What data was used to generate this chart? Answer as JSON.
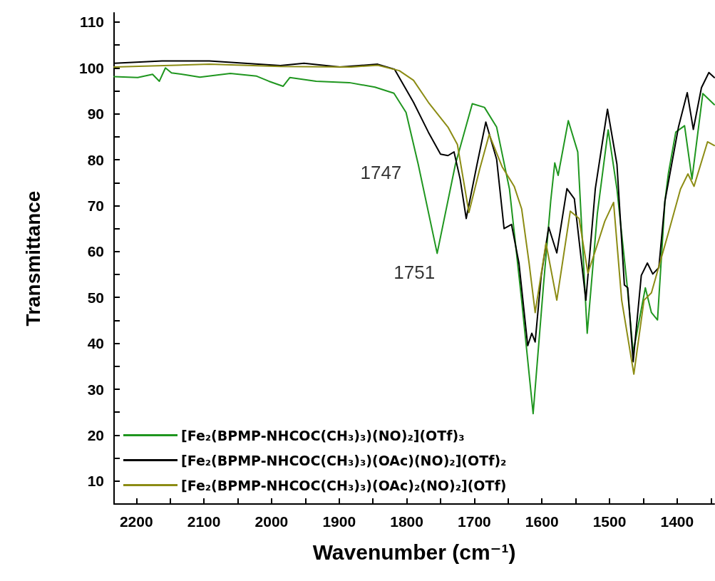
{
  "chart_data": {
    "type": "line",
    "xlabel": "Wavenumber (cm⁻¹)",
    "ylabel": "Transmittance",
    "xlim": [
      2233,
      1345
    ],
    "xticks": [
      2200,
      {
        "value": 2150,
        "label": null
      },
      2100,
      {
        "value": 2050,
        "label": null
      },
      2000,
      {
        "value": 1950,
        "label": null
      },
      1900,
      {
        "value": 1850,
        "label": null
      },
      1800,
      {
        "value": 1750,
        "label": null
      },
      1700,
      {
        "value": 1650,
        "label": null
      },
      1600,
      {
        "value": 1550,
        "label": null
      },
      1500,
      {
        "value": 1450,
        "label": null
      },
      1400,
      {
        "value": 1350,
        "label": null
      }
    ],
    "ylim": [
      5,
      112
    ],
    "yticks": [
      10,
      {
        "value": 15,
        "label": null
      },
      20,
      {
        "value": 25,
        "label": null
      },
      30,
      {
        "value": 35,
        "label": null
      },
      40,
      {
        "value": 45,
        "label": null
      },
      50,
      {
        "value": 55,
        "label": null
      },
      60,
      {
        "value": 65,
        "label": null
      },
      70,
      {
        "value": 75,
        "label": null
      },
      80,
      {
        "value": 85,
        "label": null
      },
      90,
      {
        "value": 95,
        "label": null
      },
      100,
      {
        "value": 105,
        "label": null
      },
      110
    ],
    "grid": false,
    "legend": "bottom left",
    "line_style": "solid",
    "annotations": [
      {
        "text": "1747",
        "x": 1739,
        "y": 80.9
      },
      {
        "text": "1751",
        "x": 1755,
        "y": 59.6
      }
    ],
    "series": [
      {
        "name": "[Fe₂(BPMP-NHCOC(CH₃)₃)(NO)₂](OTf)₃",
        "color": "#1f961f",
        "x": [
          2233,
          2198,
          2176,
          2166,
          2157,
          2148,
          2127,
          2106,
          2061,
          2022,
          2004,
          1983,
          1973,
          1934,
          1885,
          1847,
          1819,
          1801,
          1783,
          1755,
          1728,
          1703,
          1685,
          1667,
          1648,
          1638,
          1630,
          1613,
          1598,
          1587,
          1581,
          1576,
          1561,
          1547,
          1533,
          1518,
          1502,
          1489,
          1474,
          1465,
          1447,
          1438,
          1429,
          1418,
          1413,
          1402,
          1389,
          1378,
          1362,
          1345
        ],
        "values": [
          98.1,
          97.9,
          98.6,
          97.1,
          100,
          98.9,
          98.5,
          98,
          98.8,
          98.2,
          97.1,
          96,
          97.9,
          97.1,
          96.8,
          95.8,
          94.5,
          90.3,
          79,
          59.6,
          79,
          92.2,
          91.4,
          87.1,
          73.6,
          60.2,
          49.4,
          24.7,
          52.1,
          71,
          79.3,
          76.6,
          88.5,
          81.7,
          42.2,
          68.3,
          86.5,
          73.6,
          52.7,
          38,
          52.1,
          46.7,
          45.1,
          71,
          76.9,
          86,
          87.4,
          75.8,
          94.4,
          92
        ]
      },
      {
        "name": "[Fe₂(BPMP-NHCOC(CH₃)₃)(OAc)(NO)₂](OTf)₂",
        "color": "#000000",
        "x": [
          2233,
          2162,
          2092,
          1987,
          1952,
          1899,
          1843,
          1818,
          1790,
          1768,
          1750,
          1739,
          1730,
          1721,
          1712,
          1696,
          1683,
          1667,
          1656,
          1645,
          1634,
          1621,
          1615,
          1610,
          1601,
          1590,
          1578,
          1563,
          1552,
          1535,
          1521,
          1503,
          1489,
          1478,
          1473,
          1465,
          1453,
          1444,
          1436,
          1427,
          1418,
          1398,
          1385,
          1376,
          1364,
          1353,
          1345
        ],
        "values": [
          101,
          101.5,
          101.5,
          100.5,
          101,
          100.2,
          100.8,
          99.7,
          92.5,
          86,
          81.2,
          80.9,
          81.7,
          75.8,
          67.2,
          79,
          88.2,
          80.1,
          65,
          65.9,
          57.5,
          39.5,
          42.2,
          40.3,
          54.8,
          65.3,
          59.7,
          73.7,
          71.5,
          49.4,
          73.7,
          91,
          79,
          52.7,
          52.1,
          36,
          54.8,
          57.5,
          55.1,
          56.5,
          71,
          87.1,
          94.6,
          86.6,
          95.7,
          99,
          97.9
        ]
      },
      {
        "name": "[Fe₂(BPMP-NHCOC(CH₃)₃)(OAc)₂(NO)₂](OTf)",
        "color": "#8c8c14",
        "x": [
          2233,
          2092,
          1987,
          1882,
          1843,
          1811,
          1790,
          1768,
          1739,
          1725,
          1708,
          1692,
          1678,
          1659,
          1641,
          1630,
          1619,
          1610,
          1594,
          1578,
          1558,
          1545,
          1532,
          1522,
          1507,
          1494,
          1482,
          1464,
          1449,
          1438,
          1413,
          1395,
          1384,
          1375,
          1355,
          1345
        ],
        "values": [
          100.2,
          100.8,
          100.3,
          100.2,
          100.6,
          99.4,
          97.3,
          92.5,
          87.1,
          83.3,
          68.5,
          78,
          85.5,
          78.5,
          74.2,
          69.3,
          57.5,
          46.7,
          61.8,
          49.4,
          68.8,
          67.2,
          55.3,
          59.7,
          66.6,
          70.7,
          49.4,
          33.3,
          49.4,
          51,
          64,
          73.6,
          76.9,
          74.2,
          83.9,
          83.1
        ]
      }
    ]
  }
}
